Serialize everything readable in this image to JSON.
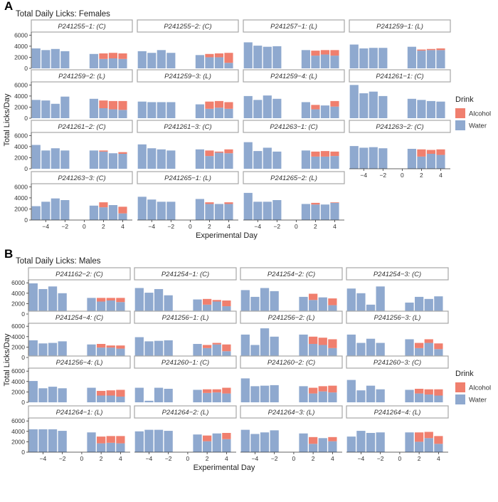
{
  "colors": {
    "alcohol": "#F07F6E",
    "water": "#8FA9CF",
    "strip_border": "#A6A6A6",
    "axis": "#333333"
  },
  "chart_data": [
    {
      "type": "bar",
      "stacked": true,
      "panel_label": "A",
      "title": "Total Daily Licks: Females",
      "xlabel": "Experimental Day",
      "ylabel": "Total Licks/Day",
      "x_ticks": [
        -4,
        -2,
        0,
        2,
        4
      ],
      "y_ticks": [
        0,
        2000,
        4000,
        6000
      ],
      "ylim": [
        0,
        6300
      ],
      "legend": {
        "title": "Drink",
        "items": [
          "Alcohol",
          "Water"
        ],
        "position": "right"
      },
      "days": [
        -5,
        -4,
        -3,
        -2,
        1,
        2,
        3,
        4
      ],
      "facets": [
        {
          "label": "P241255−1: (C)",
          "water": [
            3600,
            3300,
            3500,
            3100,
            2600,
            1700,
            1800,
            1700
          ],
          "alcohol": [
            0,
            0,
            0,
            0,
            0,
            1000,
            1000,
            1000
          ]
        },
        {
          "label": "P241255−2: (C)",
          "water": [
            3100,
            2800,
            3300,
            2800,
            2400,
            2000,
            2000,
            1000
          ],
          "alcohol": [
            0,
            0,
            0,
            0,
            0,
            600,
            700,
            1800
          ]
        },
        {
          "label": "P241257−1: (L)",
          "water": [
            4700,
            4100,
            3900,
            4000,
            3300,
            2300,
            2500,
            2300
          ],
          "alcohol": [
            0,
            0,
            0,
            0,
            0,
            900,
            800,
            1000
          ]
        },
        {
          "label": "P241259−1: (L)",
          "water": [
            4300,
            3600,
            3700,
            3700,
            3900,
            3200,
            3300,
            3300
          ],
          "alcohol": [
            0,
            0,
            0,
            0,
            0,
            200,
            200,
            300
          ]
        },
        {
          "label": "P241259−2: (L)",
          "water": [
            3300,
            3200,
            2600,
            3900,
            3500,
            1800,
            1600,
            1500
          ],
          "alcohol": [
            0,
            0,
            0,
            0,
            0,
            1400,
            1500,
            1600
          ]
        },
        {
          "label": "P241259−3: (L)",
          "water": [
            3000,
            2900,
            2900,
            2900,
            2500,
            1700,
            1900,
            1700
          ],
          "alcohol": [
            0,
            0,
            0,
            0,
            0,
            1300,
            1200,
            1200
          ]
        },
        {
          "label": "P241259−4: (L)",
          "water": [
            4000,
            3300,
            4100,
            3500,
            2900,
            1600,
            2300,
            2100
          ],
          "alcohol": [
            0,
            0,
            0,
            0,
            0,
            800,
            0,
            1000
          ]
        },
        {
          "label": "P241261−1: (C)",
          "water": [
            6000,
            4500,
            4800,
            4000,
            3500,
            3300,
            3100,
            3000
          ],
          "alcohol": [
            0,
            0,
            0,
            0,
            0,
            0,
            0,
            0
          ]
        },
        {
          "label": "P241261−2: (C)",
          "water": [
            4300,
            3300,
            3700,
            3300,
            3300,
            3100,
            2800,
            2700
          ],
          "alcohol": [
            0,
            0,
            0,
            0,
            0,
            200,
            0,
            300
          ]
        },
        {
          "label": "P241261−3: (C)",
          "water": [
            4400,
            3700,
            3500,
            3300,
            3500,
            2300,
            2900,
            2800
          ],
          "alcohol": [
            0,
            0,
            0,
            0,
            0,
            1000,
            200,
            700
          ]
        },
        {
          "label": "P241263−1: (C)",
          "water": [
            4800,
            3200,
            3800,
            3100,
            3300,
            2200,
            2200,
            2300
          ],
          "alcohol": [
            0,
            0,
            0,
            0,
            0,
            900,
            1000,
            800
          ]
        },
        {
          "label": "P241263−2: (C)",
          "water": [
            4100,
            3800,
            3900,
            3700,
            3600,
            2200,
            2700,
            2500
          ],
          "alcohol": [
            0,
            0,
            0,
            0,
            0,
            1300,
            700,
            1000
          ]
        },
        {
          "label": "P241263−3: (C)",
          "water": [
            2500,
            3300,
            3900,
            3600,
            2600,
            2300,
            2700,
            1200
          ],
          "alcohol": [
            0,
            0,
            0,
            0,
            0,
            900,
            0,
            1200
          ]
        },
        {
          "label": "P241265−1: (L)",
          "water": [
            4200,
            3700,
            3300,
            3300,
            3800,
            2900,
            2900,
            2900
          ],
          "alcohol": [
            0,
            0,
            0,
            0,
            0,
            300,
            0,
            300
          ]
        },
        {
          "label": "P241265−2: (L)",
          "water": [
            4900,
            3300,
            3300,
            3600,
            2900,
            2800,
            2800,
            3100
          ],
          "alcohol": [
            0,
            0,
            0,
            0,
            0,
            300,
            0,
            100
          ]
        }
      ]
    },
    {
      "type": "bar",
      "stacked": true,
      "panel_label": "B",
      "title": "Total Daily Licks: Males",
      "xlabel": "Experimental Day",
      "ylabel": "Total Licks/Day",
      "x_ticks": [
        -4,
        -2,
        0,
        2,
        4
      ],
      "y_ticks": [
        0,
        2000,
        4000,
        6000
      ],
      "ylim": [
        0,
        6300
      ],
      "legend": {
        "title": "Drink",
        "items": [
          "Alcohol",
          "Water"
        ],
        "position": "right"
      },
      "days": [
        -5,
        -4,
        -3,
        -2,
        1,
        2,
        3,
        4
      ],
      "facets": [
        {
          "label": "P241162−2: (C)",
          "water": [
            5900,
            4800,
            5300,
            4000,
            3100,
            2400,
            2600,
            2300
          ],
          "alcohol": [
            0,
            0,
            0,
            0,
            0,
            700,
            500,
            800
          ]
        },
        {
          "label": "P241254−1: (C)",
          "water": [
            5000,
            4100,
            4800,
            3600,
            2800,
            1800,
            2400,
            1500
          ],
          "alcohol": [
            0,
            0,
            0,
            0,
            0,
            1100,
            300,
            1100
          ]
        },
        {
          "label": "P241254−2: (C)",
          "water": [
            4600,
            3300,
            5000,
            4400,
            3300,
            2700,
            3200,
            1700
          ],
          "alcohol": [
            0,
            0,
            0,
            0,
            0,
            1200,
            0,
            1300
          ]
        },
        {
          "label": "P241254−3: (C)",
          "water": [
            4900,
            4000,
            1800,
            5300,
            2200,
            3300,
            2900,
            3400
          ],
          "alcohol": [
            0,
            0,
            0,
            0,
            0,
            0,
            0,
            0
          ]
        },
        {
          "label": "P241254−4: (C)",
          "water": [
            3300,
            2700,
            2800,
            3100,
            2500,
            1900,
            1900,
            1700
          ],
          "alcohol": [
            0,
            0,
            0,
            0,
            0,
            700,
            400,
            600
          ]
        },
        {
          "label": "P241256−1: (L)",
          "water": [
            3900,
            3100,
            3200,
            3300,
            2600,
            1800,
            2500,
            1200
          ],
          "alcohol": [
            0,
            0,
            0,
            0,
            0,
            600,
            300,
            1300
          ]
        },
        {
          "label": "P241256−2: (L)",
          "water": [
            4400,
            2400,
            5600,
            4000,
            4400,
            2600,
            2400,
            1800
          ],
          "alcohol": [
            0,
            0,
            0,
            0,
            0,
            1400,
            1400,
            1700
          ]
        },
        {
          "label": "P241256−3: (L)",
          "water": [
            4400,
            2800,
            3600,
            2800,
            3500,
            1800,
            2800,
            1600
          ],
          "alcohol": [
            0,
            0,
            0,
            0,
            0,
            1000,
            700,
            1100
          ]
        },
        {
          "label": "P241256−4: (L)",
          "water": [
            4100,
            2700,
            3000,
            2700,
            2800,
            1300,
            1300,
            1100
          ],
          "alcohol": [
            0,
            0,
            0,
            0,
            0,
            900,
            1000,
            1300
          ]
        },
        {
          "label": "P241260−1: (C)",
          "water": [
            2800,
            300,
            2800,
            2600,
            2400,
            1800,
            1900,
            1700
          ],
          "alcohol": [
            0,
            0,
            0,
            0,
            0,
            700,
            600,
            1100
          ]
        },
        {
          "label": "P241260−2: (C)",
          "water": [
            4600,
            3100,
            3200,
            3300,
            3100,
            1700,
            2100,
            1900
          ],
          "alcohol": [
            0,
            0,
            0,
            0,
            0,
            1100,
            1000,
            1300
          ]
        },
        {
          "label": "P241260−3: (C)",
          "water": [
            4300,
            2300,
            3200,
            2500,
            2400,
            1700,
            1500,
            1300
          ],
          "alcohol": [
            0,
            0,
            0,
            0,
            0,
            900,
            1000,
            1200
          ]
        },
        {
          "label": "P241264−1: (L)",
          "water": [
            4400,
            4400,
            4400,
            4100,
            3800,
            1700,
            1800,
            1700
          ],
          "alcohol": [
            0,
            0,
            0,
            0,
            0,
            1300,
            1300,
            1400
          ]
        },
        {
          "label": "P241264−2: (L)",
          "water": [
            4000,
            4300,
            4300,
            4100,
            3400,
            2100,
            3600,
            2500
          ],
          "alcohol": [
            0,
            0,
            0,
            0,
            0,
            1100,
            0,
            1200
          ]
        },
        {
          "label": "P241264−3: (L)",
          "water": [
            4300,
            3500,
            3800,
            4200,
            3600,
            1600,
            2700,
            2100
          ],
          "alcohol": [
            0,
            0,
            0,
            0,
            0,
            1300,
            0,
            800
          ]
        },
        {
          "label": "P241264−4: (L)",
          "water": [
            3000,
            4100,
            3700,
            3800,
            3800,
            2000,
            2700,
            1600
          ],
          "alcohol": [
            0,
            0,
            0,
            0,
            0,
            1800,
            1200,
            1500
          ]
        }
      ]
    }
  ]
}
